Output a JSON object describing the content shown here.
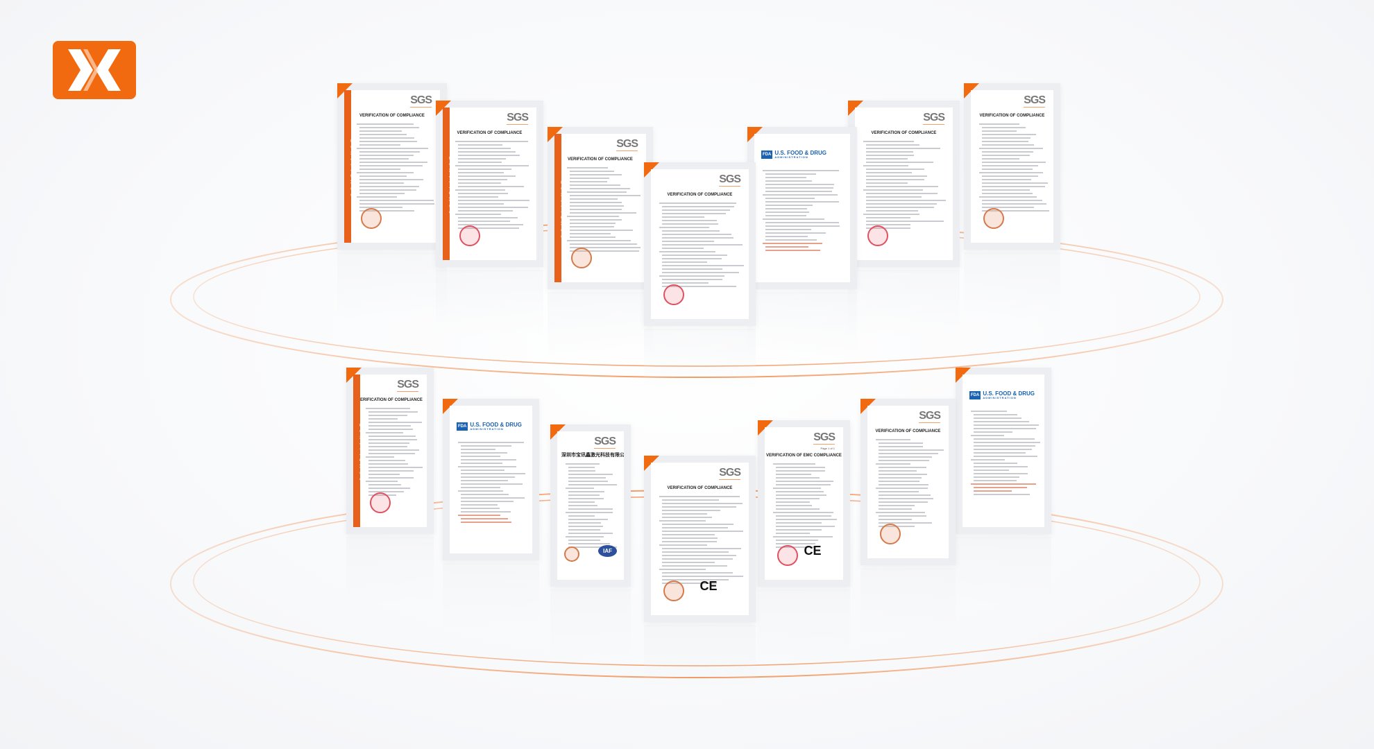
{
  "brand": {
    "logo_name": "double-chevron-x-logo",
    "accent_color": "#f26a10"
  },
  "ring_color": "#f3a06b",
  "labels": {
    "sgs": "SGS",
    "voc": "VERIFICATION OF COMPLIANCE",
    "emc": "VERIFICATION OF EMC COMPLIANCE",
    "compliance": "COMPLIANCE",
    "fda_badge": "FDA",
    "fda_title": "U.S. FOOD & DRUG",
    "fda_sub": "ADMINISTRATION",
    "page": "Page 1 of 1",
    "cn_company": "深圳市宝讯鑫激光科技有限公司",
    "iaf": "IAF",
    "ce": "CE"
  },
  "documents": [
    {
      "type": "sgs-compliance",
      "row": 1
    },
    {
      "type": "sgs-compliance",
      "row": 1
    },
    {
      "type": "sgs-compliance",
      "row": 1
    },
    {
      "type": "sgs-eagle",
      "row": 1
    },
    {
      "type": "fda",
      "row": 1
    },
    {
      "type": "sgs",
      "row": 1
    },
    {
      "type": "sgs-eagle",
      "row": 1
    },
    {
      "type": "sgs-compliance",
      "row": 2
    },
    {
      "type": "fda",
      "row": 2
    },
    {
      "type": "cn-iso",
      "row": 2
    },
    {
      "type": "sgs-eagle-ce",
      "row": 2
    },
    {
      "type": "sgs-emc",
      "row": 2
    },
    {
      "type": "sgs",
      "row": 2
    },
    {
      "type": "fda",
      "row": 2
    }
  ]
}
